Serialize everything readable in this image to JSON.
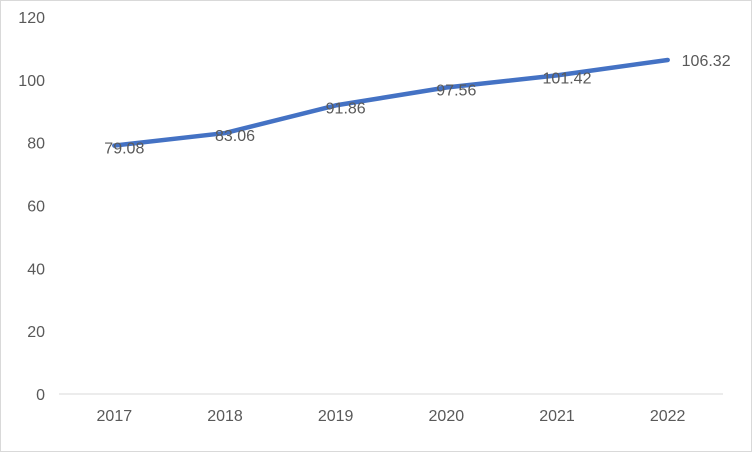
{
  "chart_data": {
    "type": "line",
    "title": "",
    "xlabel": "",
    "ylabel": "",
    "categories": [
      "2017",
      "2018",
      "2019",
      "2020",
      "2021",
      "2022"
    ],
    "series": [
      {
        "values": [
          79.08,
          83.06,
          91.86,
          97.56,
          101.42,
          106.32
        ],
        "labels": [
          "79.08",
          "83.06",
          "91.86",
          "97.56",
          "101.42",
          "106.32"
        ],
        "color": "#4472C4"
      }
    ],
    "y_ticks": [
      "0",
      "20",
      "40",
      "60",
      "80",
      "100",
      "120"
    ],
    "ylim": [
      0,
      120
    ],
    "grid": false,
    "legend": "none",
    "colors": {
      "line": "#4472C4",
      "axis": "#d9d9d9",
      "text": "#595959",
      "border": "#d9d9d9"
    }
  }
}
